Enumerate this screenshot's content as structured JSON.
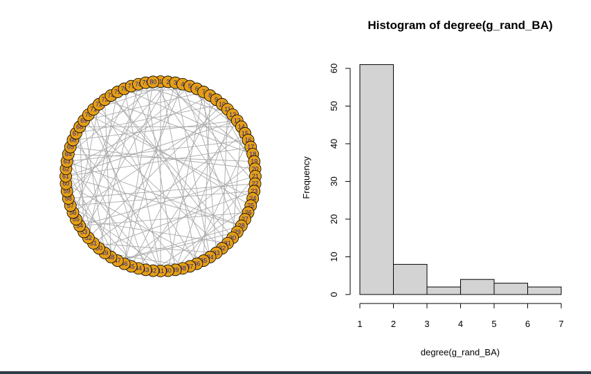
{
  "network_plot": {
    "node_count": 80,
    "node_fill": "#e59f16",
    "node_stroke": "#000000",
    "edge_color": "#a9a9a9",
    "label_color": "#1f1f9c",
    "nodes": [
      "1",
      "2",
      "3",
      "4",
      "5",
      "6",
      "7",
      "8",
      "9",
      "10",
      "11",
      "12",
      "13",
      "14",
      "15",
      "16",
      "17",
      "18",
      "19",
      "20",
      "21",
      "22",
      "23",
      "24",
      "25",
      "26",
      "27",
      "28",
      "29",
      "30",
      "31",
      "32",
      "33",
      "34",
      "35",
      "36",
      "37",
      "38",
      "39",
      "40",
      "41",
      "42",
      "43",
      "44",
      "45",
      "46",
      "47",
      "48",
      "49",
      "50",
      "51",
      "52",
      "53",
      "54",
      "55",
      "56",
      "57",
      "58",
      "59",
      "60",
      "61",
      "62",
      "63",
      "64",
      "65",
      "66",
      "67",
      "68",
      "69",
      "70",
      "71",
      "72",
      "73",
      "74",
      "75",
      "76",
      "77",
      "78",
      "79",
      "80"
    ],
    "edges": [
      [
        0,
        17
      ],
      [
        0,
        40
      ],
      [
        0,
        63
      ],
      [
        1,
        21
      ],
      [
        1,
        52
      ],
      [
        2,
        33
      ],
      [
        2,
        70
      ],
      [
        3,
        47
      ],
      [
        3,
        14
      ],
      [
        4,
        58
      ],
      [
        5,
        26
      ],
      [
        5,
        74
      ],
      [
        6,
        39
      ],
      [
        7,
        61
      ],
      [
        8,
        19
      ],
      [
        8,
        44
      ],
      [
        9,
        66
      ],
      [
        10,
        31
      ],
      [
        10,
        55
      ],
      [
        11,
        77
      ],
      [
        12,
        43
      ],
      [
        13,
        29
      ],
      [
        13,
        67
      ],
      [
        14,
        50
      ],
      [
        15,
        36
      ],
      [
        16,
        60
      ],
      [
        17,
        72
      ],
      [
        18,
        45
      ],
      [
        19,
        64
      ],
      [
        20,
        38
      ],
      [
        21,
        57
      ],
      [
        22,
        49
      ],
      [
        23,
        69
      ],
      [
        24,
        41
      ],
      [
        25,
        53
      ],
      [
        26,
        79
      ],
      [
        27,
        62
      ],
      [
        28,
        46
      ],
      [
        29,
        73
      ],
      [
        30,
        54
      ],
      [
        31,
        68
      ],
      [
        32,
        50
      ],
      [
        33,
        76
      ],
      [
        34,
        59
      ],
      [
        35,
        71
      ],
      [
        36,
        48
      ],
      [
        37,
        65
      ],
      [
        38,
        78
      ],
      [
        39,
        56
      ],
      [
        40,
        75
      ],
      [
        41,
        62
      ],
      [
        42,
        70
      ],
      [
        43,
        58
      ],
      [
        44,
        66
      ],
      [
        45,
        79
      ],
      [
        46,
        61
      ],
      [
        47,
        72
      ],
      [
        48,
        68
      ],
      [
        49,
        77
      ],
      [
        50,
        64
      ],
      [
        51,
        74
      ],
      [
        52,
        67
      ],
      [
        53,
        78
      ],
      [
        54,
        71
      ],
      [
        55,
        76
      ],
      [
        0,
        35
      ],
      [
        3,
        28
      ],
      [
        7,
        34
      ],
      [
        12,
        60
      ],
      [
        18,
        63
      ],
      [
        22,
        56
      ],
      [
        24,
        70
      ],
      [
        27,
        46
      ],
      [
        30,
        73
      ],
      [
        2,
        45
      ],
      [
        6,
        68
      ],
      [
        9,
        51
      ],
      [
        11,
        38
      ],
      [
        15,
        62
      ],
      [
        20,
        53
      ],
      [
        57,
        1
      ],
      [
        65,
        12
      ],
      [
        60,
        27
      ],
      [
        75,
        16
      ],
      [
        69,
        40
      ],
      [
        32,
        6
      ]
    ]
  },
  "chart_data": {
    "type": "bar",
    "title": "Histogram of degree(g_rand_BA)",
    "xlabel": "degree(g_rand_BA)",
    "ylabel": "Frequency",
    "bin_edges": [
      1,
      2,
      3,
      4,
      5,
      6,
      7
    ],
    "values": [
      61,
      8,
      2,
      4,
      3,
      2
    ],
    "xlim": [
      1,
      7
    ],
    "ylim": [
      0,
      62
    ],
    "xticks": [
      "1",
      "2",
      "3",
      "4",
      "5",
      "6",
      "7"
    ],
    "yticks": [
      "0",
      "10",
      "20",
      "30",
      "40",
      "50",
      "60"
    ],
    "bar_fill": "#d3d3d3",
    "bar_stroke": "#000000",
    "grid": false
  }
}
